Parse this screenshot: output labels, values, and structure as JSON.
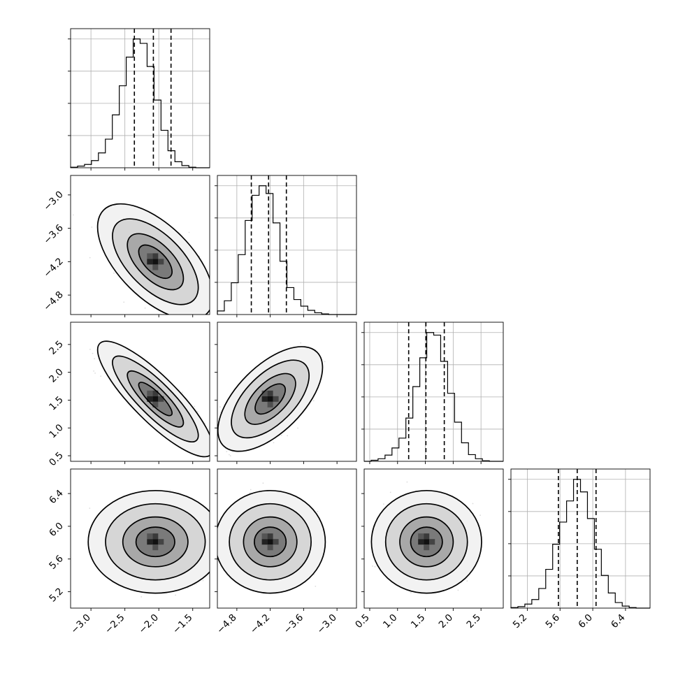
{
  "chart_data": {
    "type": "corner",
    "grid": true,
    "parameters": [
      {
        "center": -2.05,
        "sigma": 0.3,
        "range": [
          -3.3,
          -1.25
        ],
        "ticks": [
          "−3.0",
          "−2.5",
          "−2.0",
          "−1.5"
        ],
        "tick_values": [
          -3.0,
          -2.5,
          -2.0,
          -1.5
        ],
        "quantiles": [
          -2.36,
          -2.08,
          -1.82
        ]
      },
      {
        "center": -4.2,
        "sigma": 0.3,
        "range": [
          -5.15,
          -2.65
        ],
        "ticks": [
          "−4.8",
          "−4.2",
          "−3.6",
          "−3.0"
        ],
        "tick_values": [
          -4.8,
          -4.2,
          -3.6,
          -3.0
        ],
        "quantiles": [
          -4.54,
          -4.23,
          -3.91
        ]
      },
      {
        "center": 1.52,
        "sigma": 0.3,
        "range": [
          0.4,
          2.9
        ],
        "ticks": [
          "0.5",
          "1.0",
          "1.5",
          "2.0",
          "2.5"
        ],
        "tick_values": [
          0.5,
          1.0,
          1.5,
          2.0,
          2.5
        ],
        "quantiles": [
          1.2,
          1.51,
          1.84
        ]
      },
      {
        "center": 5.81,
        "sigma": 0.19,
        "range": [
          5.0,
          6.7
        ],
        "ticks": [
          "5.2",
          "5.6",
          "6.0",
          "6.4"
        ],
        "tick_values": [
          5.2,
          5.6,
          6.0,
          6.4
        ],
        "quantiles": [
          5.58,
          5.81,
          6.04
        ]
      }
    ],
    "correlations": [
      {
        "row": 1,
        "col": 0,
        "rho": -0.6
      },
      {
        "row": 2,
        "col": 0,
        "rho": -0.85
      },
      {
        "row": 2,
        "col": 1,
        "rho": 0.6
      },
      {
        "row": 3,
        "col": 0,
        "rho": 0.0
      },
      {
        "row": 3,
        "col": 1,
        "rho": 0.0
      },
      {
        "row": 3,
        "col": 2,
        "rho": 0.0
      }
    ],
    "histograms": {
      "bins": 20,
      "counts": [
        [
          1,
          3,
          6,
          13,
          27,
          52,
          96,
          149,
          201,
          234,
          226,
          184,
          123,
          68,
          31,
          11,
          4,
          1,
          0,
          0
        ],
        [
          6,
          23,
          53,
          100,
          157,
          199,
          215,
          202,
          153,
          89,
          45,
          25,
          14,
          7,
          3,
          1,
          0,
          0,
          0,
          0
        ],
        [
          0,
          2,
          5,
          12,
          26,
          45,
          84,
          145,
          201,
          250,
          245,
          194,
          132,
          76,
          36,
          13,
          5,
          1,
          0,
          0
        ],
        [
          1,
          3,
          8,
          17,
          39,
          77,
          127,
          171,
          213,
          256,
          231,
          178,
          117,
          65,
          30,
          11,
          4,
          1,
          0,
          0
        ]
      ]
    },
    "contour_levels": [
      0.118,
      0.393,
      0.675,
      0.865
    ],
    "scatter_color": "#808080",
    "line_color": "#000000"
  }
}
